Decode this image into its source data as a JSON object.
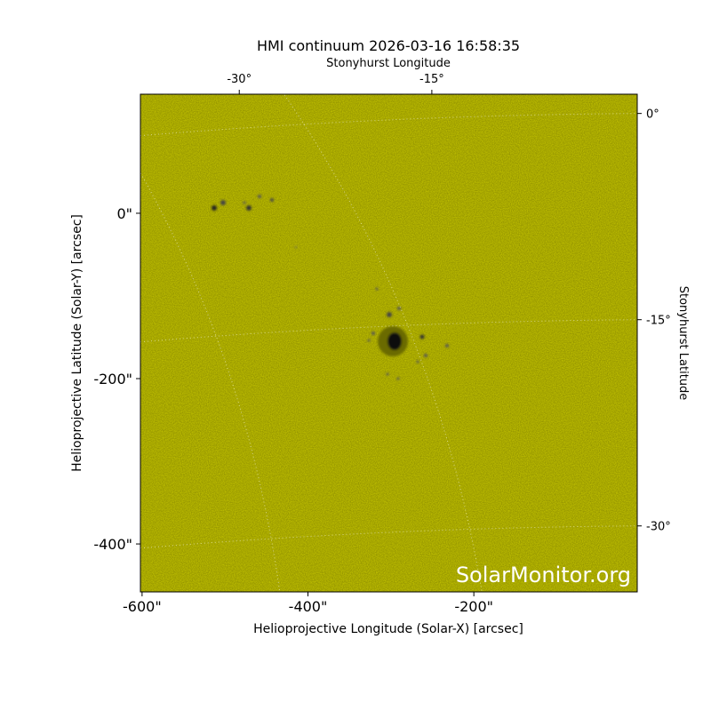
{
  "chart_data": {
    "type": "image",
    "title": "HMI continuum 2026-03-16 16:58:35",
    "xlabel": "Helioprojective Longitude (Solar-X) [arcsec]",
    "ylabel": "Helioprojective Latitude (Solar-Y) [arcsec]",
    "x2label": "Stonyhurst Longitude",
    "y2label": "Stonyhurst Latitude",
    "watermark": "SolarMonitor.org",
    "color": "#cccc00",
    "xlim": [
      -602,
      -3
    ],
    "ylim": [
      -458,
      144
    ],
    "xticks": [
      {
        "value": -600,
        "label": "-600\""
      },
      {
        "value": -400,
        "label": "-400\""
      },
      {
        "value": -200,
        "label": "-200\""
      }
    ],
    "yticks": [
      {
        "value": 0,
        "label": "0\""
      },
      {
        "value": -200,
        "label": "-200\""
      },
      {
        "value": -400,
        "label": "-400\""
      }
    ],
    "x2lim": [
      -37.7,
      1
    ],
    "x2ticks": [
      {
        "value": -30,
        "label": "-30°"
      },
      {
        "value": -15,
        "label": "-15°"
      }
    ],
    "y2lim": [
      -34.8,
      1.4
    ],
    "y2ticks": [
      {
        "value": 0,
        "label": "0°"
      },
      {
        "value": -15,
        "label": "-15°"
      },
      {
        "value": -30,
        "label": "-30°"
      }
    ],
    "grid": true
  }
}
